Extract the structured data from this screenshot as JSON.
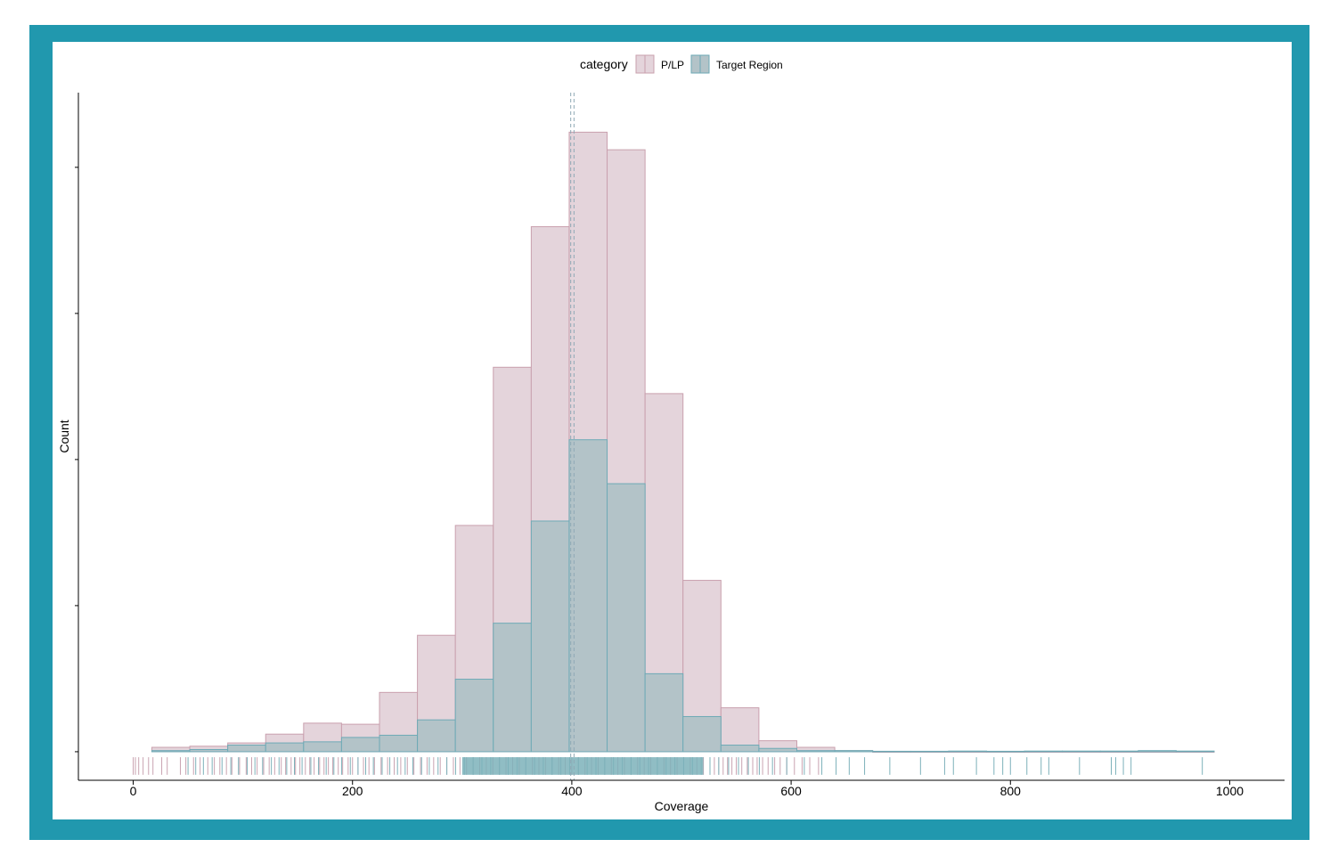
{
  "colors": {
    "frame": "#2198AE",
    "plp_fill": "#E4D4DB",
    "plp_stroke": "#C9A0AE",
    "target_fill": "#B3C3C8",
    "target_stroke": "#6EAAB6",
    "rug_plp": "#C9A3B1",
    "rug_target": "#7DB1BA",
    "vline": "#8FA9B5"
  },
  "chart_data": {
    "type": "bar",
    "title": "",
    "xlabel": "Coverage",
    "ylabel": "Count",
    "xlim": [
      -50,
      1050
    ],
    "x_ticks": [
      0,
      200,
      400,
      600,
      800,
      1000
    ],
    "ylim": [
      -13,
      300
    ],
    "y_ticks_labeled": false,
    "bin_width": 34.6,
    "bin_starts": [
      17,
      51.6,
      86.2,
      120.8,
      155.4,
      190,
      224.6,
      259.2,
      293.8,
      328.4,
      363,
      397.6,
      432.2,
      466.8,
      501.4,
      536,
      570.6,
      605.2,
      639.8,
      674.4,
      709,
      743.6,
      778.2,
      812.8,
      847.4,
      882,
      916.6,
      951.2
    ],
    "series": [
      {
        "name": "P/LP",
        "values": [
          2,
          2.5,
          4,
          8,
          13,
          12.5,
          27,
          53,
          103,
          175,
          239,
          282,
          274,
          163,
          78,
          20,
          5,
          2,
          0.5,
          0,
          0,
          0,
          0,
          0,
          0,
          0,
          0,
          0
        ]
      },
      {
        "name": "Target Region",
        "values": [
          0.5,
          1,
          3,
          4,
          4.5,
          6.5,
          7.5,
          14.5,
          33,
          58.5,
          105,
          142,
          122,
          35.5,
          16,
          3,
          1.5,
          0.5,
          0.5,
          0.2,
          0.2,
          0.3,
          0.2,
          0.3,
          0.3,
          0.3,
          0.5,
          0.3
        ]
      }
    ],
    "vlines": [
      {
        "series": "P/LP",
        "x": 399
      },
      {
        "series": "Target Region",
        "x": 402
      }
    ],
    "rug": {
      "P/LP": [
        0,
        2,
        5,
        9,
        14,
        18,
        26,
        31,
        43,
        48,
        55,
        61,
        68,
        74,
        79,
        85,
        90,
        97,
        103,
        108,
        113,
        119,
        124,
        129,
        135,
        139,
        144,
        148,
        152,
        157,
        161,
        165,
        170,
        174,
        178,
        182,
        187,
        191,
        196,
        200,
        205,
        210,
        215,
        220,
        226,
        232,
        238,
        244,
        250,
        256,
        262,
        268,
        274,
        280,
        286,
        292,
        298,
        304,
        310,
        316,
        322,
        328,
        334,
        340,
        346,
        352,
        358,
        364,
        370,
        376,
        382,
        388,
        394,
        400,
        406,
        412,
        418,
        424,
        430,
        436,
        442,
        448,
        454,
        460,
        466,
        472,
        478,
        484,
        490,
        496,
        502,
        508,
        514,
        520,
        526,
        530,
        534,
        538,
        542,
        546,
        550,
        555,
        560,
        565,
        569,
        574,
        579,
        585,
        590,
        596,
        603,
        610,
        617,
        625
      ],
      "Target Region": [
        50,
        57,
        64,
        72,
        81,
        89,
        96,
        104,
        111,
        118,
        126,
        133,
        140,
        147,
        154,
        162,
        169,
        176,
        183,
        190,
        198,
        205,
        212,
        219,
        227,
        234,
        241,
        248,
        255,
        263,
        270,
        278,
        286,
        294,
        302,
        310,
        318,
        326,
        334,
        342,
        350,
        358,
        366,
        374,
        382,
        390,
        398,
        406,
        414,
        422,
        430,
        438,
        446,
        454,
        462,
        470,
        478,
        486,
        494,
        502,
        510,
        518,
        526,
        534,
        543,
        552,
        561,
        571,
        583,
        596,
        612,
        628,
        641,
        653,
        667,
        690,
        718,
        740,
        748,
        769,
        785,
        793,
        800,
        815,
        828,
        835,
        863,
        892,
        896,
        903,
        910,
        975
      ]
    },
    "legend": {
      "title": "category",
      "entries": [
        "P/LP",
        "Target Region"
      ],
      "placement": "top"
    }
  }
}
